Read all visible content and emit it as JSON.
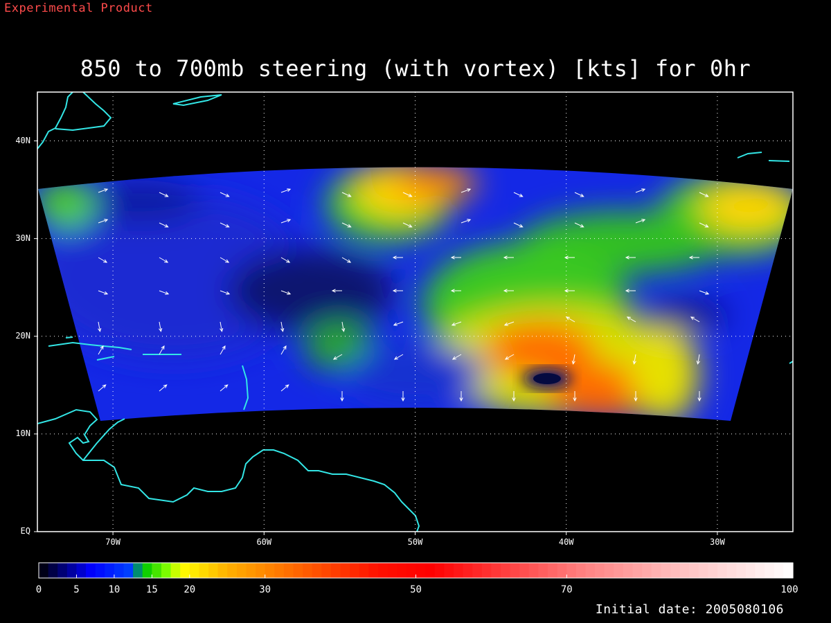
{
  "header": {
    "experimental_label": "Experimental Product",
    "title": "850 to 700mb steering (with vortex) [kts] for 0hr"
  },
  "axes": {
    "lat_labels": [
      {
        "value": 40,
        "label": "40N"
      },
      {
        "value": 30,
        "label": "30N"
      },
      {
        "value": 20,
        "label": "20N"
      },
      {
        "value": 10,
        "label": "10N"
      },
      {
        "value": 0,
        "label": "EQ"
      }
    ],
    "lon_labels": [
      {
        "value": -70,
        "label": "70W"
      },
      {
        "value": -60,
        "label": "60W"
      },
      {
        "value": -50,
        "label": "50W"
      },
      {
        "value": -40,
        "label": "40W"
      },
      {
        "value": -30,
        "label": "30W"
      }
    ],
    "lat_range": [
      0,
      45
    ],
    "lon_range": [
      -75,
      -25
    ],
    "grid": true
  },
  "colorbar": {
    "tick_labels": [
      "0",
      "5",
      "10",
      "15",
      "20",
      "30",
      "50",
      "70",
      "100"
    ],
    "tick_values": [
      0,
      5,
      10,
      15,
      20,
      30,
      50,
      70,
      100
    ],
    "colors": [
      "#000000",
      "#0000ff",
      "#00c800",
      "#ffff00",
      "#ff8000",
      "#ff0000",
      "#ff6060",
      "#ffffff"
    ]
  },
  "footer": {
    "initial_date": "Initial date: 2005080106"
  },
  "map": {
    "coastline_color": "#33e6e6",
    "grid_color": "#ffffff",
    "vortex_center": {
      "lat": 15.5,
      "lon": -41
    }
  }
}
